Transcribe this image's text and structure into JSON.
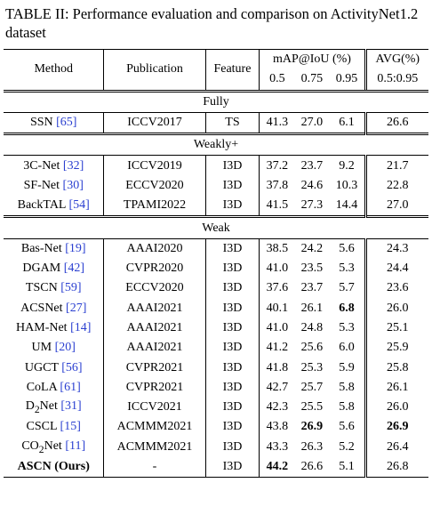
{
  "caption": "TABLE II: Performance evaluation and comparison on ActivityNet1.2 dataset",
  "header": {
    "method": "Method",
    "publication": "Publication",
    "feature": "Feature",
    "map": "mAP@IoU (%)",
    "avg": "AVG(%)",
    "thresholds": [
      "0.5",
      "0.75",
      "0.95"
    ],
    "avg_range": "0.5:0.95"
  },
  "sections": [
    {
      "label": "Fully",
      "rows": [
        {
          "method": [
            "SSN"
          ],
          "ref": "[65]",
          "publication": "ICCV2017",
          "feature": "TS",
          "map": [
            "41.3",
            "27.0",
            "6.1"
          ],
          "avg": "26.6"
        }
      ]
    },
    {
      "label": "Weakly+",
      "rows": [
        {
          "method": [
            "3C-Net"
          ],
          "ref": "[32]",
          "publication": "ICCV2019",
          "feature": "I3D",
          "map": [
            "37.2",
            "23.7",
            "9.2"
          ],
          "avg": "21.7"
        },
        {
          "method": [
            "SF-Net"
          ],
          "ref": "[30]",
          "publication": "ECCV2020",
          "feature": "I3D",
          "map": [
            "37.8",
            "24.6",
            "10.3"
          ],
          "avg": "22.8"
        },
        {
          "method": [
            "BackTAL"
          ],
          "ref": "[54]",
          "publication": "TPAMI2022",
          "feature": "I3D",
          "map": [
            "41.5",
            "27.3",
            "14.4"
          ],
          "avg": "27.0"
        }
      ]
    },
    {
      "label": "Weak",
      "rows": [
        {
          "method": [
            "Bas-Net"
          ],
          "ref": "[19]",
          "publication": "AAAI2020",
          "feature": "I3D",
          "map": [
            "38.5",
            "24.2",
            "5.6"
          ],
          "avg": "24.3"
        },
        {
          "method": [
            "DGAM"
          ],
          "ref": "[42]",
          "publication": "CVPR2020",
          "feature": "I3D",
          "map": [
            "41.0",
            "23.5",
            "5.3"
          ],
          "avg": "24.4"
        },
        {
          "method": [
            "TSCN"
          ],
          "ref": "[59]",
          "publication": "ECCV2020",
          "feature": "I3D",
          "map": [
            "37.6",
            "23.7",
            "5.7"
          ],
          "avg": "23.6"
        },
        {
          "method": [
            "ACSNet"
          ],
          "ref": "[27]",
          "publication": "AAAI2021",
          "feature": "I3D",
          "map": [
            "40.1",
            "26.1",
            "6.8"
          ],
          "avg": "26.0",
          "bold": [
            "map.2"
          ]
        },
        {
          "method": [
            "HAM-Net"
          ],
          "ref": "[14]",
          "publication": "AAAI2021",
          "feature": "I3D",
          "map": [
            "41.0",
            "24.8",
            "5.3"
          ],
          "avg": "25.1"
        },
        {
          "method": [
            "UM"
          ],
          "ref": "[20]",
          "publication": "AAAI2021",
          "feature": "I3D",
          "map": [
            "41.2",
            "25.6",
            "6.0"
          ],
          "avg": "25.9"
        },
        {
          "method": [
            "UGCT"
          ],
          "ref": "[56]",
          "publication": "CVPR2021",
          "feature": "I3D",
          "map": [
            "41.8",
            "25.3",
            "5.9"
          ],
          "avg": "25.8"
        },
        {
          "method": [
            "CoLA"
          ],
          "ref": "[61]",
          "publication": "CVPR2021",
          "feature": "I3D",
          "map": [
            "42.7",
            "25.7",
            "5.8"
          ],
          "avg": "26.1"
        },
        {
          "method": [
            "D",
            {
              "sub": "2"
            },
            "Net"
          ],
          "ref": "[31]",
          "publication": "ICCV2021",
          "feature": "I3D",
          "map": [
            "42.3",
            "25.5",
            "5.8"
          ],
          "avg": "26.0"
        },
        {
          "method": [
            "CSCL"
          ],
          "ref": "[15]",
          "publication": "ACMMM2021",
          "feature": "I3D",
          "map": [
            "43.8",
            "26.9",
            "5.6"
          ],
          "avg": "26.9",
          "bold": [
            "map.1",
            "avg"
          ]
        },
        {
          "method": [
            "CO",
            {
              "sub": "2"
            },
            "Net"
          ],
          "ref": "[11]",
          "publication": "ACMMM2021",
          "feature": "I3D",
          "map": [
            "43.3",
            "26.3",
            "5.2"
          ],
          "avg": "26.4"
        },
        {
          "method": [
            "ASCN (Ours)"
          ],
          "publication": "-",
          "feature": "I3D",
          "map": [
            "44.2",
            "26.6",
            "5.1"
          ],
          "avg": "26.8",
          "bold": [
            "method",
            "map.0"
          ]
        }
      ]
    }
  ]
}
